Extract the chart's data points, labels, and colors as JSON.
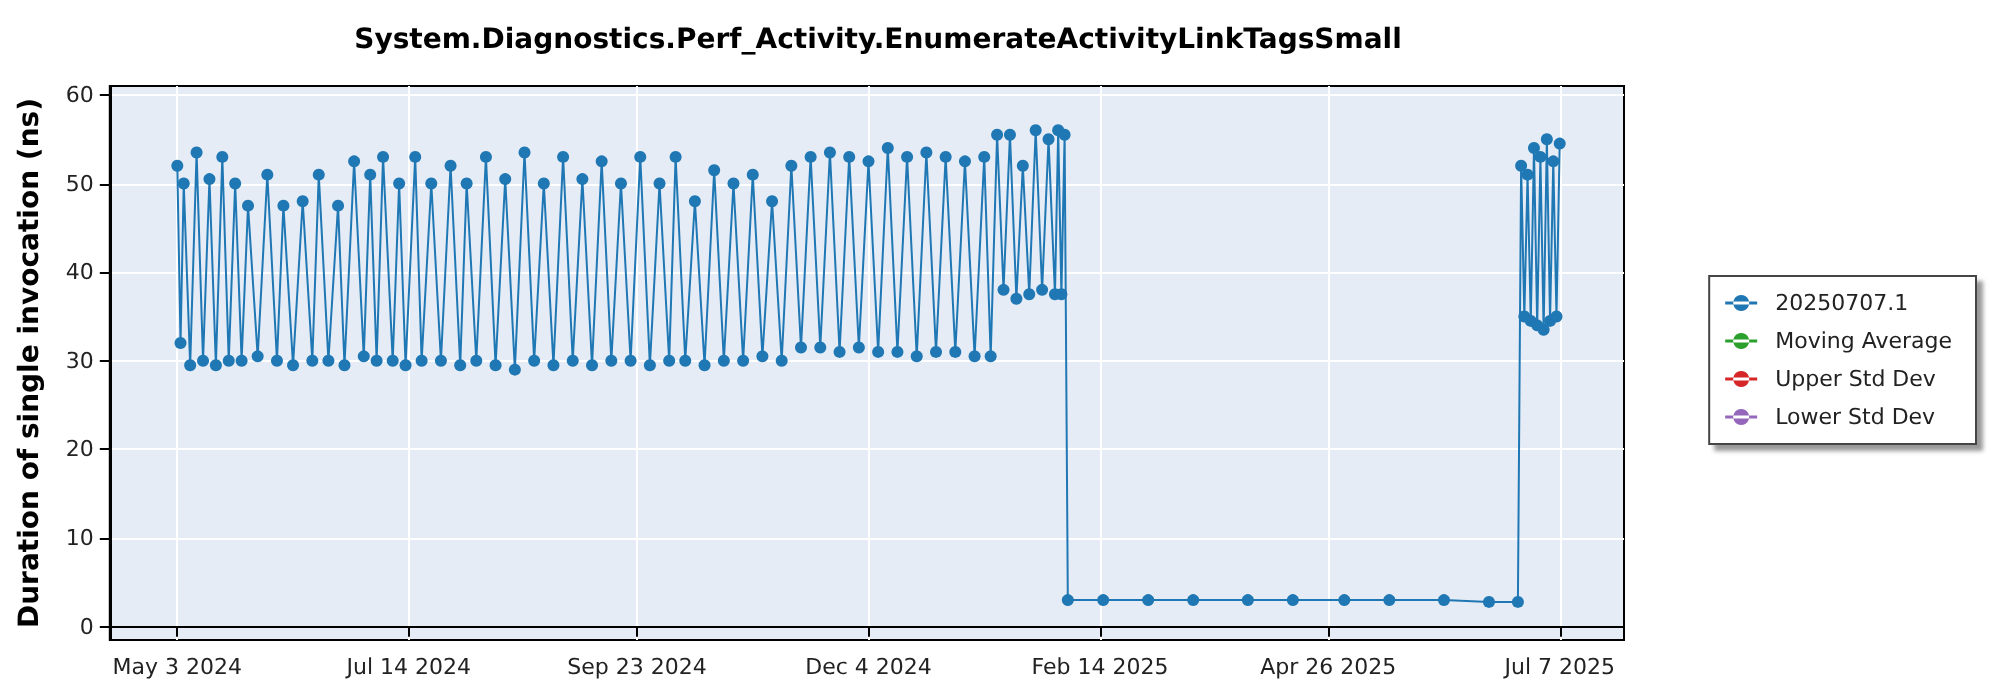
{
  "chart_data": {
    "type": "line",
    "title": "System.Diagnostics.Perf_Activity.EnumerateActivityLinkTagsSmall",
    "ylabel": "Duration of single invocation (ns)",
    "xlim": [
      "2024-04-12",
      "2025-07-27"
    ],
    "xticks": [
      {
        "value": "2024-05-03",
        "label": "May 3 2024"
      },
      {
        "value": "2024-07-14",
        "label": "Jul 14 2024"
      },
      {
        "value": "2024-09-23",
        "label": "Sep 23 2024"
      },
      {
        "value": "2024-12-04",
        "label": "Dec 4 2024"
      },
      {
        "value": "2025-02-14",
        "label": "Feb 14 2025"
      },
      {
        "value": "2025-04-26",
        "label": "Apr 26 2025"
      },
      {
        "value": "2025-07-07",
        "label": "Jul 7 2025"
      }
    ],
    "ylim": [
      -1.5,
      61
    ],
    "yticks": [
      0,
      10,
      20,
      30,
      40,
      50,
      60
    ],
    "grid": true,
    "legend": "right",
    "marker": "circle",
    "series": [
      {
        "name": "20250707.1",
        "color": "#1f77b4",
        "x": [
          "2024-05-03",
          "2024-05-04",
          "2024-05-05",
          "2024-05-07",
          "2024-05-09",
          "2024-05-11",
          "2024-05-13",
          "2024-05-15",
          "2024-05-17",
          "2024-05-19",
          "2024-05-21",
          "2024-05-23",
          "2024-05-25",
          "2024-05-28",
          "2024-05-31",
          "2024-06-03",
          "2024-06-05",
          "2024-06-08",
          "2024-06-11",
          "2024-06-14",
          "2024-06-16",
          "2024-06-19",
          "2024-06-22",
          "2024-06-24",
          "2024-06-27",
          "2024-06-30",
          "2024-07-02",
          "2024-07-04",
          "2024-07-06",
          "2024-07-09",
          "2024-07-11",
          "2024-07-13",
          "2024-07-16",
          "2024-07-18",
          "2024-07-21",
          "2024-07-24",
          "2024-07-27",
          "2024-07-30",
          "2024-08-01",
          "2024-08-04",
          "2024-08-07",
          "2024-08-10",
          "2024-08-13",
          "2024-08-16",
          "2024-08-19",
          "2024-08-22",
          "2024-08-25",
          "2024-08-28",
          "2024-08-31",
          "2024-09-03",
          "2024-09-06",
          "2024-09-09",
          "2024-09-12",
          "2024-09-15",
          "2024-09-18",
          "2024-09-21",
          "2024-09-24",
          "2024-09-27",
          "2024-09-30",
          "2024-10-03",
          "2024-10-05",
          "2024-10-08",
          "2024-10-11",
          "2024-10-14",
          "2024-10-17",
          "2024-10-20",
          "2024-10-23",
          "2024-10-26",
          "2024-10-29",
          "2024-11-01",
          "2024-11-04",
          "2024-11-07",
          "2024-11-10",
          "2024-11-13",
          "2024-11-16",
          "2024-11-19",
          "2024-11-22",
          "2024-11-25",
          "2024-11-28",
          "2024-12-01",
          "2024-12-04",
          "2024-12-07",
          "2024-12-10",
          "2024-12-13",
          "2024-12-16",
          "2024-12-19",
          "2024-12-22",
          "2024-12-25",
          "2024-12-28",
          "2024-12-31",
          "2025-01-03",
          "2025-01-06",
          "2025-01-09",
          "2025-01-11",
          "2025-01-13",
          "2025-01-15",
          "2025-01-17",
          "2025-01-19",
          "2025-01-21",
          "2025-01-23",
          "2025-01-25",
          "2025-01-27",
          "2025-01-29",
          "2025-01-31",
          "2025-02-01",
          "2025-02-02",
          "2025-02-03",
          "2025-02-04",
          "2025-02-15",
          "2025-03-01",
          "2025-03-15",
          "2025-04-01",
          "2025-04-15",
          "2025-05-01",
          "2025-05-15",
          "2025-06-01",
          "2025-06-15",
          "2025-06-24",
          "2025-06-25",
          "2025-06-26",
          "2025-06-27",
          "2025-06-28",
          "2025-06-29",
          "2025-06-30",
          "2025-07-01",
          "2025-07-02",
          "2025-07-03",
          "2025-07-04",
          "2025-07-05",
          "2025-07-06",
          "2025-07-07"
        ],
        "values": [
          52,
          32,
          50,
          29.5,
          53.5,
          30,
          50.5,
          29.5,
          53,
          30,
          50,
          30,
          47.5,
          30.5,
          51,
          30,
          47.5,
          29.5,
          48,
          30,
          51,
          30,
          47.5,
          29.5,
          52.5,
          30.5,
          51,
          30,
          53,
          30,
          50,
          29.5,
          53,
          30,
          50,
          30,
          52,
          29.5,
          50,
          30,
          53,
          29.5,
          50.5,
          29,
          53.5,
          30,
          50,
          29.5,
          53,
          30,
          50.5,
          29.5,
          52.5,
          30,
          50,
          30,
          53,
          29.5,
          50,
          30,
          53,
          30,
          48,
          29.5,
          51.5,
          30,
          50,
          30,
          51,
          30.5,
          48,
          30,
          52,
          31.5,
          53,
          31.5,
          53.5,
          31,
          53,
          31.5,
          52.5,
          31,
          54,
          31,
          53,
          30.5,
          53.5,
          31,
          53,
          31,
          52.5,
          30.5,
          53,
          30.5,
          55.5,
          38,
          55.5,
          37,
          52,
          37.5,
          56,
          38,
          55,
          37.5,
          56,
          37.5,
          55.5,
          3,
          3,
          3,
          3,
          3,
          3,
          3,
          3,
          3,
          2.8,
          2.8,
          52,
          35,
          51,
          34.5,
          54,
          34,
          53,
          33.5,
          55,
          34.5,
          52.5,
          35,
          54.5
        ]
      },
      {
        "name": "Moving Average",
        "color": "#2ca02c"
      },
      {
        "name": "Upper Std Dev",
        "color": "#d62728"
      },
      {
        "name": "Lower Std Dev",
        "color": "#9467bd"
      }
    ]
  }
}
